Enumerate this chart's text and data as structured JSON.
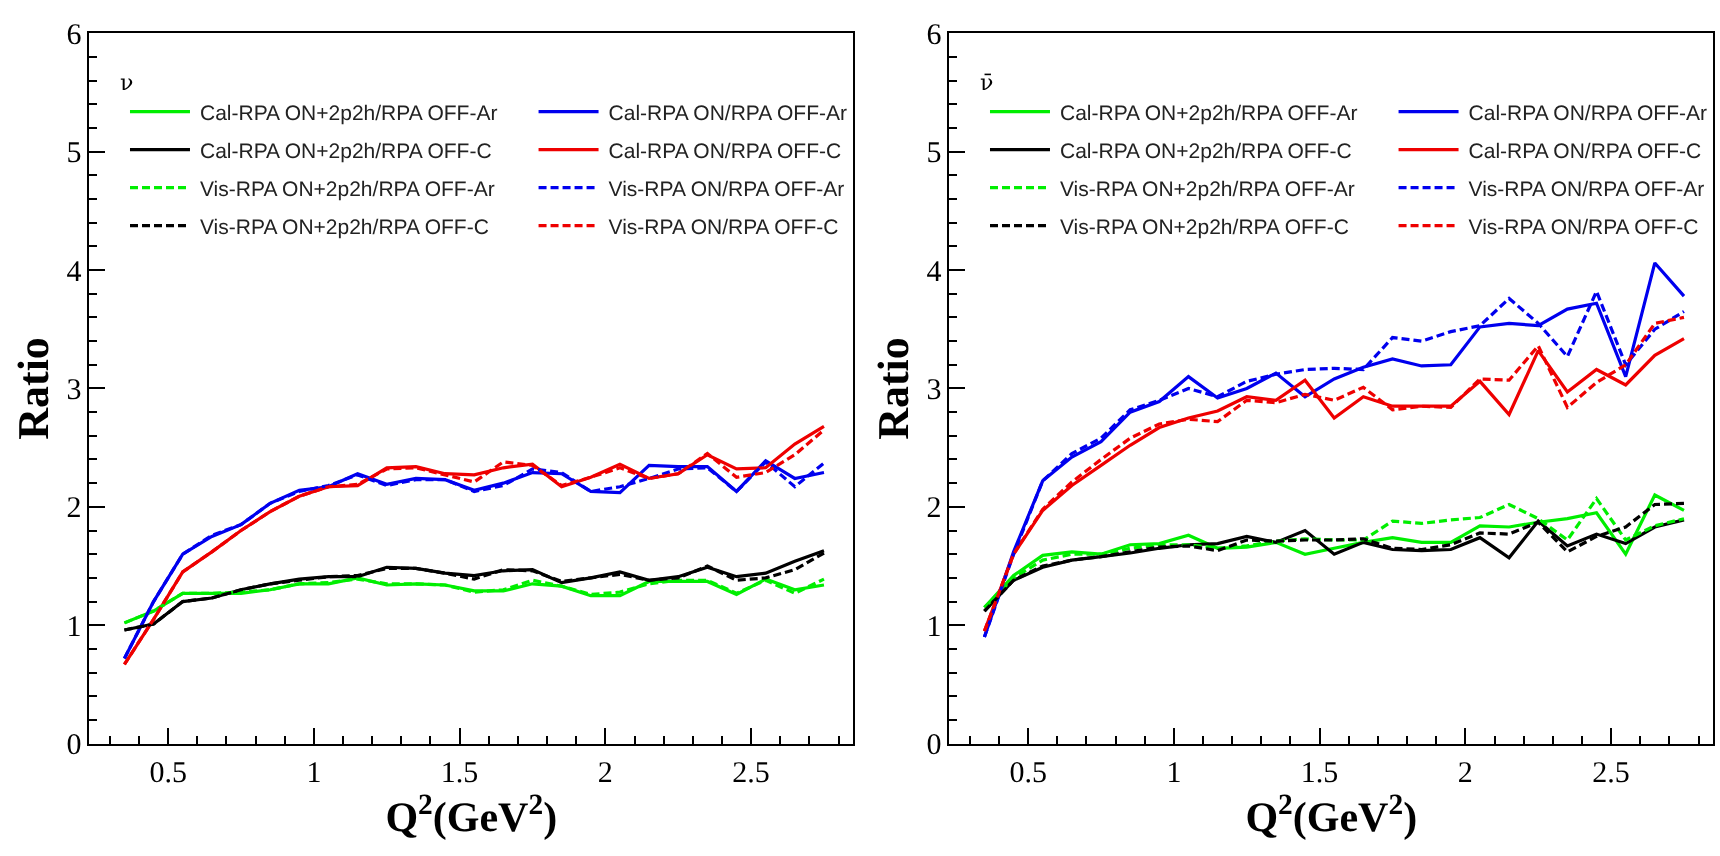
{
  "chart_data": [
    {
      "type": "line",
      "title": "ν",
      "xlabel": "Q$^{2}$(GeV$^{2}$)",
      "ylabel": "Ratio",
      "legend": "top",
      "x": [
        0.35,
        0.45,
        0.55,
        0.65,
        0.75,
        0.85,
        0.95,
        1.05,
        1.15,
        1.25,
        1.35,
        1.45,
        1.55,
        1.65,
        1.75,
        1.85,
        1.95,
        2.05,
        2.15,
        2.25,
        2.35,
        2.45,
        2.55,
        2.65,
        2.75
      ],
      "xlim": [
        0.23,
        2.85
      ],
      "xticks": [
        0.5,
        1,
        1.5,
        2,
        2.5
      ],
      "ylim": [
        0,
        6
      ],
      "yticks": [
        0,
        1,
        2,
        3,
        4,
        5,
        6
      ],
      "series": [
        {
          "name": "Cal-RPA ON+2p2h/RPA OFF-Ar",
          "color": "#00ee00",
          "line_style": "solid",
          "values": [
            1.02,
            1.12,
            1.27,
            1.27,
            1.27,
            1.3,
            1.35,
            1.35,
            1.4,
            1.34,
            1.35,
            1.34,
            1.29,
            1.29,
            1.35,
            1.33,
            1.25,
            1.25,
            1.37,
            1.37,
            1.37,
            1.26,
            1.39,
            1.3,
            1.34
          ]
        },
        {
          "name": "Cal-RPA ON/RPA OFF-Ar",
          "color": "#0000ee",
          "line_style": "solid",
          "values": [
            0.72,
            1.2,
            1.6,
            1.75,
            1.85,
            2.03,
            2.14,
            2.17,
            2.28,
            2.19,
            2.24,
            2.23,
            2.14,
            2.2,
            2.29,
            2.28,
            2.13,
            2.12,
            2.35,
            2.34,
            2.34,
            2.13,
            2.39,
            2.24,
            2.29
          ]
        },
        {
          "name": "Cal-RPA ON+2p2h/RPA OFF-C",
          "color": "#000000",
          "line_style": "solid",
          "values": [
            0.96,
            1.01,
            1.2,
            1.23,
            1.3,
            1.35,
            1.39,
            1.41,
            1.41,
            1.49,
            1.48,
            1.44,
            1.42,
            1.46,
            1.47,
            1.36,
            1.4,
            1.45,
            1.38,
            1.41,
            1.49,
            1.41,
            1.44,
            1.54,
            1.63
          ]
        },
        {
          "name": "Cal-RPA ON/RPA OFF-C",
          "color": "#ee0000",
          "line_style": "solid",
          "values": [
            0.67,
            1.05,
            1.45,
            1.62,
            1.8,
            1.96,
            2.09,
            2.17,
            2.18,
            2.33,
            2.34,
            2.28,
            2.27,
            2.33,
            2.36,
            2.17,
            2.25,
            2.36,
            2.24,
            2.28,
            2.44,
            2.32,
            2.33,
            2.53,
            2.68
          ]
        },
        {
          "name": "Vis-RPA ON+2p2h/RPA OFF-Ar",
          "color": "#00ee00",
          "line_style": "dashed",
          "values": [
            1.02,
            1.12,
            1.27,
            1.27,
            1.28,
            1.3,
            1.35,
            1.36,
            1.39,
            1.35,
            1.35,
            1.34,
            1.28,
            1.3,
            1.38,
            1.33,
            1.26,
            1.28,
            1.35,
            1.38,
            1.38,
            1.27,
            1.38,
            1.27,
            1.39
          ]
        },
        {
          "name": "Vis-RPA ON/RPA OFF-Ar",
          "color": "#0000ee",
          "line_style": "dashed",
          "values": [
            0.72,
            1.2,
            1.6,
            1.76,
            1.85,
            2.03,
            2.13,
            2.18,
            2.27,
            2.18,
            2.23,
            2.23,
            2.13,
            2.18,
            2.32,
            2.29,
            2.13,
            2.17,
            2.24,
            2.32,
            2.33,
            2.13,
            2.38,
            2.17,
            2.37
          ]
        },
        {
          "name": "Vis-RPA ON+2p2h/RPA OFF-C",
          "color": "#000000",
          "line_style": "dashed",
          "values": [
            0.96,
            1.01,
            1.2,
            1.23,
            1.3,
            1.35,
            1.38,
            1.41,
            1.42,
            1.48,
            1.48,
            1.44,
            1.39,
            1.47,
            1.46,
            1.37,
            1.4,
            1.43,
            1.38,
            1.4,
            1.5,
            1.38,
            1.4,
            1.47,
            1.61
          ]
        },
        {
          "name": "Vis-RPA ON/RPA OFF-C",
          "color": "#ee0000",
          "line_style": "dashed",
          "values": [
            0.67,
            1.05,
            1.45,
            1.62,
            1.8,
            1.96,
            2.09,
            2.17,
            2.19,
            2.32,
            2.33,
            2.27,
            2.21,
            2.38,
            2.35,
            2.18,
            2.25,
            2.33,
            2.24,
            2.28,
            2.45,
            2.25,
            2.29,
            2.44,
            2.65
          ]
        }
      ]
    },
    {
      "type": "line",
      "title": "ν̄",
      "xlabel": "Q$^{2}$(GeV$^{2}$)",
      "ylabel": "Ratio",
      "legend": "top",
      "x": [
        0.35,
        0.45,
        0.55,
        0.65,
        0.75,
        0.85,
        0.95,
        1.05,
        1.15,
        1.25,
        1.35,
        1.45,
        1.55,
        1.65,
        1.75,
        1.85,
        1.95,
        2.05,
        2.15,
        2.25,
        2.35,
        2.45,
        2.55,
        2.65,
        2.75
      ],
      "xlim": [
        0.23,
        2.85
      ],
      "xticks": [
        0.5,
        1,
        1.5,
        2,
        2.5
      ],
      "ylim": [
        0,
        6
      ],
      "yticks": [
        0,
        1,
        2,
        3,
        4,
        5,
        6
      ],
      "series": [
        {
          "name": "Cal-RPA ON+2p2h/RPA OFF-Ar",
          "color": "#00ee00",
          "line_style": "solid",
          "values": [
            1.15,
            1.42,
            1.59,
            1.62,
            1.6,
            1.68,
            1.69,
            1.76,
            1.65,
            1.66,
            1.7,
            1.6,
            1.65,
            1.7,
            1.74,
            1.7,
            1.7,
            1.84,
            1.83,
            1.87,
            1.9,
            1.95,
            1.6,
            2.1,
            1.97
          ]
        },
        {
          "name": "Cal-RPA ON/RPA OFF-Ar",
          "color": "#0000ee",
          "line_style": "solid",
          "values": [
            0.9,
            1.62,
            2.22,
            2.42,
            2.55,
            2.8,
            2.89,
            3.1,
            2.92,
            3.0,
            3.13,
            2.93,
            3.08,
            3.18,
            3.25,
            3.19,
            3.2,
            3.52,
            3.55,
            3.53,
            3.67,
            3.72,
            3.1,
            4.06,
            3.78
          ]
        },
        {
          "name": "Cal-RPA ON+2p2h/RPA OFF-C",
          "color": "#000000",
          "line_style": "solid",
          "values": [
            1.12,
            1.38,
            1.49,
            1.55,
            1.58,
            1.61,
            1.65,
            1.68,
            1.69,
            1.75,
            1.7,
            1.8,
            1.6,
            1.7,
            1.64,
            1.63,
            1.64,
            1.74,
            1.57,
            1.88,
            1.67,
            1.77,
            1.69,
            1.83,
            1.89
          ]
        },
        {
          "name": "Cal-RPA ON/RPA OFF-C",
          "color": "#ee0000",
          "line_style": "solid",
          "values": [
            0.95,
            1.6,
            1.97,
            2.18,
            2.35,
            2.52,
            2.67,
            2.75,
            2.81,
            2.93,
            2.9,
            3.07,
            2.75,
            2.93,
            2.85,
            2.85,
            2.85,
            3.06,
            2.78,
            3.32,
            2.97,
            3.16,
            3.03,
            3.28,
            3.42
          ]
        },
        {
          "name": "Vis-RPA ON+2p2h/RPA OFF-Ar",
          "color": "#00ee00",
          "line_style": "dashed",
          "values": [
            1.15,
            1.4,
            1.55,
            1.6,
            1.6,
            1.65,
            1.68,
            1.68,
            1.65,
            1.67,
            1.71,
            1.73,
            1.72,
            1.72,
            1.88,
            1.86,
            1.89,
            1.91,
            2.02,
            1.9,
            1.72,
            2.07,
            1.72,
            1.84,
            1.9
          ]
        },
        {
          "name": "Vis-RPA ON/RPA OFF-Ar",
          "color": "#0000ee",
          "line_style": "dashed",
          "values": [
            0.9,
            1.6,
            2.22,
            2.45,
            2.58,
            2.82,
            2.9,
            3.0,
            2.93,
            3.06,
            3.12,
            3.16,
            3.17,
            3.16,
            3.43,
            3.4,
            3.48,
            3.53,
            3.76,
            3.55,
            3.27,
            3.82,
            3.2,
            3.5,
            3.65
          ]
        },
        {
          "name": "Vis-RPA ON+2p2h/RPA OFF-C",
          "color": "#000000",
          "line_style": "dashed",
          "values": [
            1.12,
            1.38,
            1.5,
            1.55,
            1.58,
            1.62,
            1.66,
            1.67,
            1.63,
            1.72,
            1.71,
            1.72,
            1.72,
            1.73,
            1.65,
            1.64,
            1.68,
            1.78,
            1.77,
            1.87,
            1.62,
            1.75,
            1.83,
            2.02,
            2.03
          ]
        },
        {
          "name": "Vis-RPA ON/RPA OFF-C",
          "color": "#ee0000",
          "line_style": "dashed",
          "values": [
            0.95,
            1.6,
            1.98,
            2.21,
            2.4,
            2.58,
            2.7,
            2.74,
            2.72,
            2.9,
            2.88,
            2.95,
            2.9,
            3.01,
            2.82,
            2.85,
            2.84,
            3.08,
            3.07,
            3.36,
            2.84,
            3.05,
            3.2,
            3.55,
            3.6
          ]
        }
      ]
    }
  ]
}
